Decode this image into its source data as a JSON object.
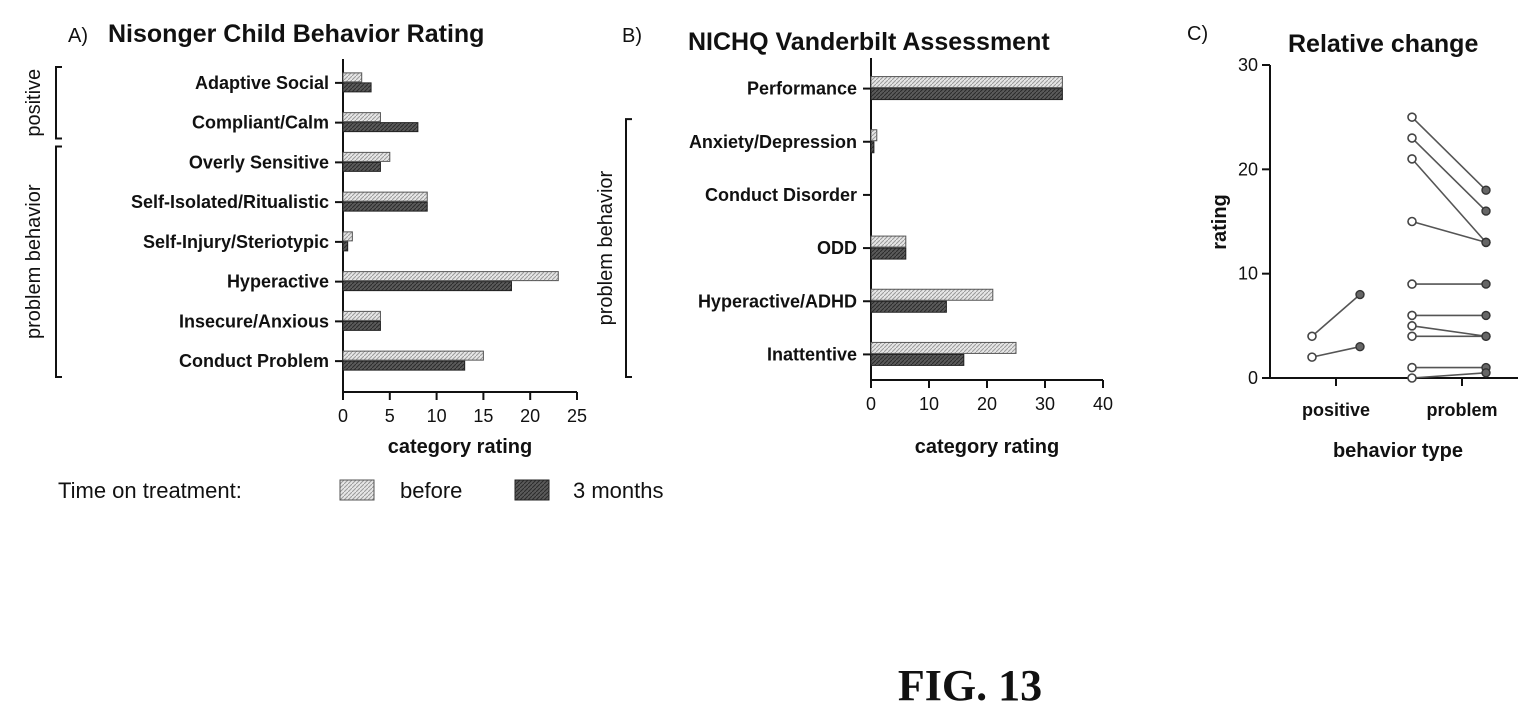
{
  "figure_caption": "FIG. 13",
  "legend": {
    "label": "Time on treatment:",
    "items": [
      {
        "name": "before",
        "style": "light-hatch"
      },
      {
        "name": "3 months",
        "style": "dark-hatch"
      }
    ]
  },
  "colors": {
    "before_fill": "#dcdcdc",
    "after_fill": "#555555",
    "line": "#444444",
    "text": "#111111"
  },
  "chart_data": [
    {
      "panel": "A)",
      "title": "Nisonger Child Behavior Rating",
      "type": "bar",
      "orientation": "horizontal",
      "categories": [
        "Adaptive Social",
        "Compliant/Calm",
        "Overly Sensitive",
        "Self-Isolated/Ritualistic",
        "Self-Injury/Steriotypic",
        "Hyperactive",
        "Insecure/Anxious",
        "Conduct Problem"
      ],
      "series": [
        {
          "name": "before",
          "values": [
            2,
            4,
            5,
            9,
            1,
            23,
            4,
            15
          ]
        },
        {
          "name": "3 months",
          "values": [
            3,
            8,
            4,
            9,
            0.5,
            18,
            4,
            13
          ]
        }
      ],
      "groups": [
        {
          "label": "positive",
          "categories": [
            "Adaptive Social",
            "Compliant/Calm"
          ]
        },
        {
          "label": "problem behavior",
          "categories": [
            "Overly Sensitive",
            "Self-Isolated/Ritualistic",
            "Self-Injury/Steriotypic",
            "Hyperactive",
            "Insecure/Anxious",
            "Conduct Problem"
          ]
        }
      ],
      "xlabel": "category rating",
      "xlim": [
        0,
        25
      ],
      "xticks": [
        "0",
        "5",
        "10",
        "15",
        "20",
        "25"
      ]
    },
    {
      "panel": "B)",
      "title": "NICHQ Vanderbilt Assessment",
      "type": "bar",
      "orientation": "horizontal",
      "categories": [
        "Performance",
        "Anxiety/Depression",
        "Conduct Disorder",
        "ODD",
        "Hyperactive/ADHD",
        "Inattentive"
      ],
      "series": [
        {
          "name": "before",
          "values": [
            33,
            1,
            0,
            6,
            21,
            25
          ]
        },
        {
          "name": "3 months",
          "values": [
            33,
            0.5,
            0,
            6,
            13,
            16
          ]
        }
      ],
      "groups": [
        {
          "label": "problem behavior",
          "categories": [
            "Anxiety/Depression",
            "Conduct Disorder",
            "ODD",
            "Hyperactive/ADHD",
            "Inattentive"
          ]
        }
      ],
      "xlabel": "category rating",
      "xlim": [
        0,
        40
      ],
      "xticks": [
        "0",
        "10",
        "20",
        "30",
        "40"
      ]
    },
    {
      "panel": "C)",
      "title": "Relative change",
      "type": "line",
      "categories": [
        "positive",
        "problem"
      ],
      "xlabel": "behavior type",
      "ylabel": "rating",
      "ylim": [
        0,
        30
      ],
      "yticks": [
        "0",
        "10",
        "20",
        "30"
      ],
      "pairs": [
        {
          "category": "positive",
          "before": 4,
          "after": 8
        },
        {
          "category": "positive",
          "before": 2,
          "after": 3
        },
        {
          "category": "problem",
          "before": 25,
          "after": 18
        },
        {
          "category": "problem",
          "before": 23,
          "after": 16
        },
        {
          "category": "problem",
          "before": 21,
          "after": 13
        },
        {
          "category": "problem",
          "before": 15,
          "after": 13
        },
        {
          "category": "problem",
          "before": 9,
          "after": 9
        },
        {
          "category": "problem",
          "before": 6,
          "after": 6
        },
        {
          "category": "problem",
          "before": 5,
          "after": 4
        },
        {
          "category": "problem",
          "before": 4,
          "after": 4
        },
        {
          "category": "problem",
          "before": 1,
          "after": 1
        },
        {
          "category": "problem",
          "before": 0,
          "after": 0.5
        }
      ]
    }
  ]
}
